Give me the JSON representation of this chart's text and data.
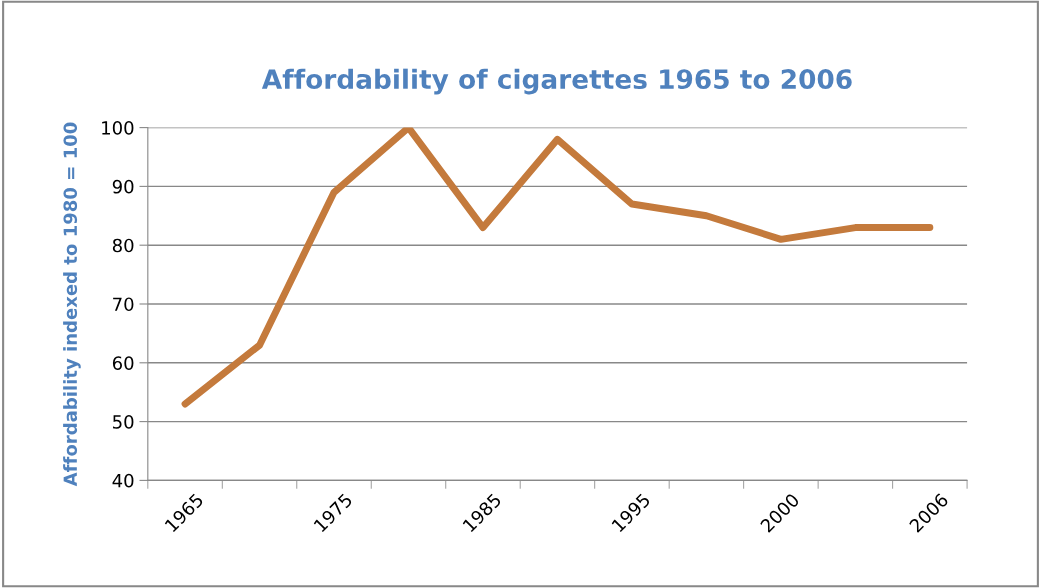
{
  "chart_data": {
    "type": "line",
    "title": "Affordability of cigarettes 1965 to 2006",
    "ylabel": "Affordability indexed to 1980 = 100",
    "categories": [
      "1965",
      null,
      "1975",
      null,
      "1985",
      null,
      "1995",
      null,
      "2000",
      null,
      "2006"
    ],
    "series": [
      {
        "color": "#c47a3c",
        "values": [
          53,
          63,
          89,
          100,
          83,
          98,
          87,
          85,
          81,
          83,
          83
        ]
      }
    ],
    "ylim": [
      40,
      100
    ],
    "yticks": [
      40,
      50,
      60,
      70,
      80,
      90,
      100
    ],
    "grid": "y",
    "legend": false,
    "marker": "none",
    "line_style": "solid"
  }
}
